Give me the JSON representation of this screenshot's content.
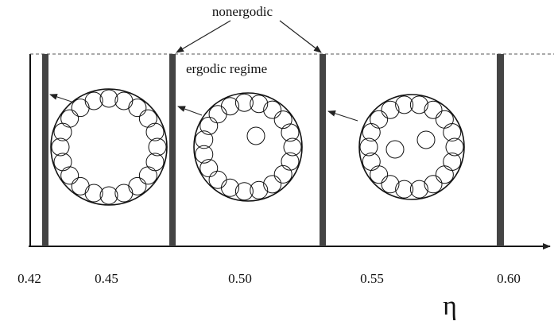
{
  "annotations": {
    "top": "nonergodic",
    "regime": "ergodic regime"
  },
  "axis": {
    "tick_labels": [
      "0.42",
      "0.45",
      "0.50",
      "0.55",
      "0.60"
    ],
    "label": "η"
  }
}
